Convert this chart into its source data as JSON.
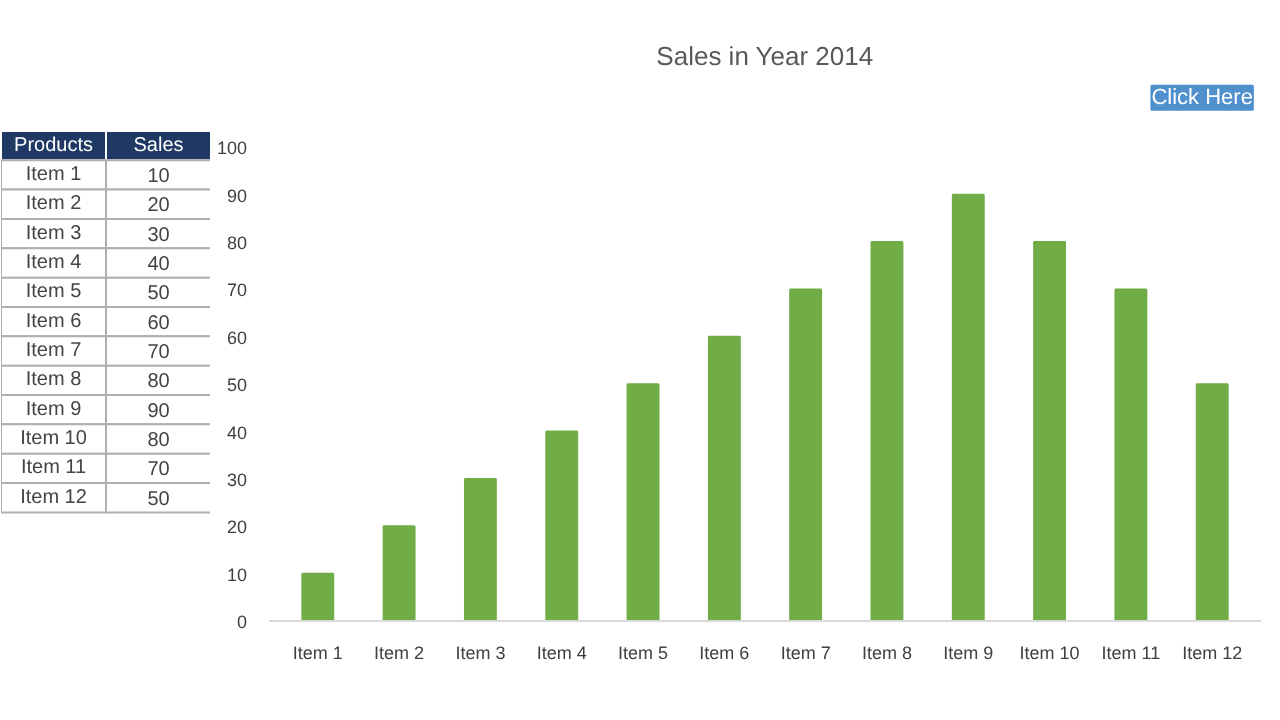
{
  "chart_data": [
    {
      "type": "other",
      "categories": [
        "Item 1",
        "Item 2",
        "Item 3",
        "Item 4",
        "Item 5",
        "Item 6",
        "Item 7",
        "Item 8",
        "Item 9",
        "Item 10",
        "Item 11",
        "Item 12"
      ],
      "values": [
        10,
        20,
        30,
        40,
        50,
        60,
        70,
        80,
        90,
        80,
        70,
        50
      ],
      "data_labels": true,
      "annotations": [
        "Products",
        "Sales"
      ]
    },
    {
      "type": "bar",
      "title": "Sales in Year 2014",
      "categories": [
        "Item 1",
        "Item 2",
        "Item 3",
        "Item 4",
        "Item 5",
        "Item 6",
        "Item 7",
        "Item 8",
        "Item 9",
        "Item 10",
        "Item 11",
        "Item 12"
      ],
      "values": [
        10,
        20,
        30,
        40,
        50,
        60,
        70,
        80,
        90,
        80,
        70,
        50
      ],
      "color": "#70ad47",
      "ylim": [
        0,
        100
      ],
      "yticks": [
        0,
        10,
        20,
        30,
        40,
        50,
        60,
        70,
        80,
        90,
        100
      ],
      "grid": false,
      "annotations": [
        "Click Here"
      ]
    }
  ]
}
